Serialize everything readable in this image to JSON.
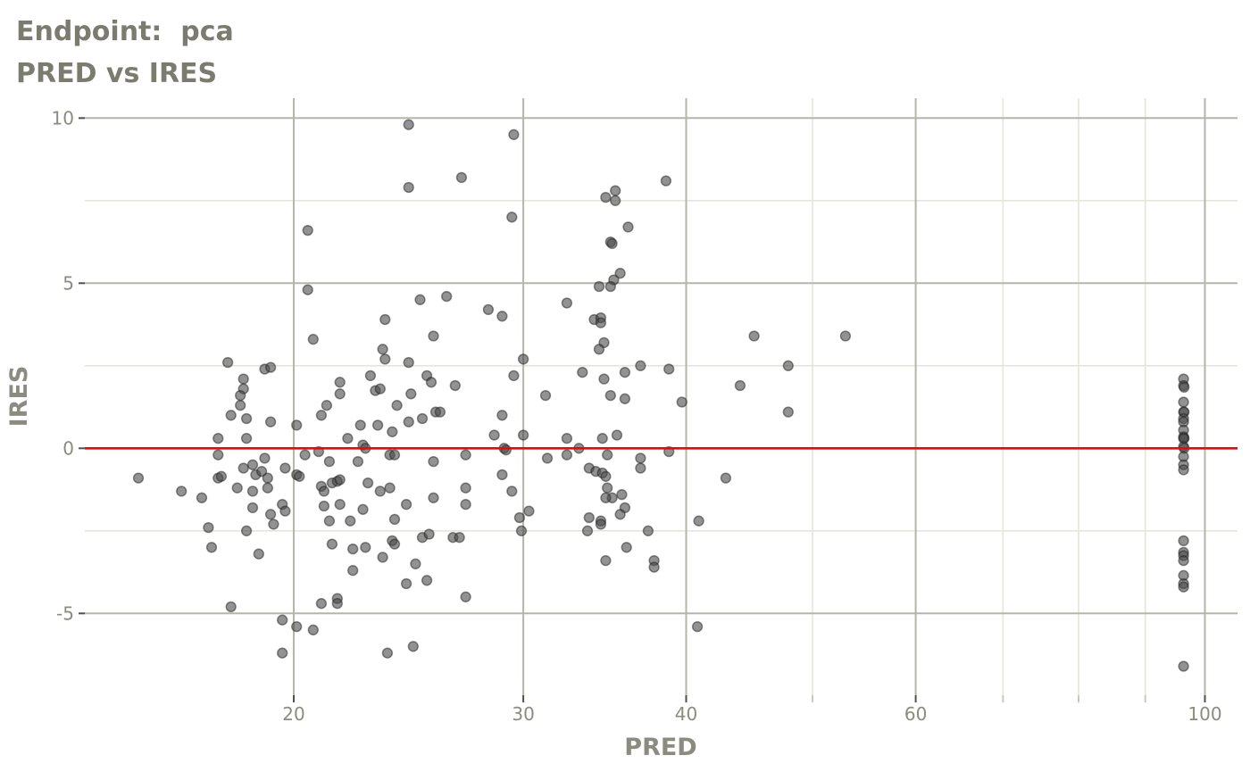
{
  "title": "Endpoint:  pca",
  "subtitle": "PRED vs IRES",
  "chart_data": {
    "type": "scatter",
    "title": "Endpoint:  pca",
    "subtitle": "PRED vs IRES",
    "xlabel": "PRED",
    "ylabel": "IRES",
    "x_scale": "log10",
    "x_axis_range": [
      13.8,
      106
    ],
    "y_axis_range": [
      -7.5,
      10.6
    ],
    "x_ticks": [
      20,
      30,
      40,
      60,
      100
    ],
    "x_minor_ticks": [
      50,
      70,
      80,
      90
    ],
    "y_ticks": [
      10,
      5,
      0,
      -5
    ],
    "y_minor_gridlines": [
      7.5,
      2.5,
      -2.5
    ],
    "grid": true,
    "legend": "none",
    "reference_line_y": 0,
    "colors": {
      "title_text": "#7b7b6f",
      "axis_text": "#8b8b7f",
      "grid_major": "#b5b5a9",
      "grid_minor": "#e5e5da",
      "tick_major": "#4f4f4f",
      "tick_minor": "#c9c9bd",
      "reference_line": "#fe0000",
      "point_fill": "#4a4a4a",
      "point_stroke": "#1f1f1f"
    },
    "points": [
      [
        24.5,
        9.8
      ],
      [
        26.9,
        8.2
      ],
      [
        24.5,
        7.9
      ],
      [
        20.5,
        6.6
      ],
      [
        20.5,
        4.8
      ],
      [
        25,
        4.5
      ],
      [
        26.2,
        4.6
      ],
      [
        23.5,
        3.9
      ],
      [
        20.7,
        3.3
      ],
      [
        23.4,
        3.0
      ],
      [
        23.5,
        2.7
      ],
      [
        24.5,
        2.6
      ],
      [
        25.6,
        3.4
      ],
      [
        17.8,
        2.6
      ],
      [
        19,
        2.4
      ],
      [
        19.2,
        2.45
      ],
      [
        18.3,
        2.1
      ],
      [
        18.3,
        1.8
      ],
      [
        21.7,
        2.0
      ],
      [
        22.9,
        2.2
      ],
      [
        25.3,
        2.2
      ],
      [
        25.5,
        2.0
      ],
      [
        26.6,
        1.9
      ],
      [
        23.1,
        1.75
      ],
      [
        23.3,
        1.8
      ],
      [
        24.6,
        1.65
      ],
      [
        21.7,
        1.65
      ],
      [
        18.2,
        1.6
      ],
      [
        18.2,
        1.3
      ],
      [
        21.2,
        1.3
      ],
      [
        24,
        1.3
      ],
      [
        25.7,
        1.1
      ],
      [
        25.9,
        1.1
      ],
      [
        17.9,
        1.0
      ],
      [
        18.4,
        0.9
      ],
      [
        19.2,
        0.8
      ],
      [
        20.1,
        0.7
      ],
      [
        21,
        1.0
      ],
      [
        22,
        0.3
      ],
      [
        22.5,
        0.7
      ],
      [
        23.2,
        0.7
      ],
      [
        23.8,
        0.5
      ],
      [
        24.5,
        0.8
      ],
      [
        25.1,
        0.9
      ],
      [
        17.5,
        0.3
      ],
      [
        18.4,
        0.3
      ],
      [
        22.6,
        0.1
      ],
      [
        22.7,
        0.0
      ],
      [
        17.5,
        -0.2
      ],
      [
        20.4,
        -0.2
      ],
      [
        20.9,
        -0.1
      ],
      [
        19,
        -0.3
      ],
      [
        21.3,
        -0.4
      ],
      [
        22.4,
        -0.4
      ],
      [
        23.7,
        -0.2
      ],
      [
        23.9,
        -0.2
      ],
      [
        25.6,
        -0.4
      ],
      [
        15.2,
        -0.9
      ],
      [
        17.5,
        -0.9
      ],
      [
        17.6,
        -0.85
      ],
      [
        18.3,
        -0.6
      ],
      [
        18.6,
        -0.5
      ],
      [
        18.7,
        -0.8
      ],
      [
        18.9,
        -0.7
      ],
      [
        19.1,
        -0.9
      ],
      [
        19.7,
        -0.6
      ],
      [
        20.1,
        -0.8
      ],
      [
        20.2,
        -0.85
      ],
      [
        27.1,
        -0.2
      ],
      [
        18.1,
        -1.2
      ],
      [
        18.6,
        -1.3
      ],
      [
        19.1,
        -1.2
      ],
      [
        16.4,
        -1.3
      ],
      [
        17,
        -1.5
      ],
      [
        18.6,
        -1.8
      ],
      [
        19.6,
        -1.7
      ],
      [
        19.7,
        -1.9
      ],
      [
        19.2,
        -2.0
      ],
      [
        19.3,
        -2.3
      ],
      [
        17.2,
        -2.4
      ],
      [
        18.4,
        -2.5
      ],
      [
        21,
        -1.15
      ],
      [
        21.1,
        -1.3
      ],
      [
        21.4,
        -1.05
      ],
      [
        21.6,
        -1.0
      ],
      [
        21.7,
        -0.95
      ],
      [
        22.8,
        -1.05
      ],
      [
        23.3,
        -1.3
      ],
      [
        23.7,
        -1.2
      ],
      [
        21.1,
        -1.75
      ],
      [
        21.7,
        -1.7
      ],
      [
        21.3,
        -2.2
      ],
      [
        22.1,
        -2.2
      ],
      [
        22.6,
        -1.85
      ],
      [
        23.9,
        -2.15
      ],
      [
        24.4,
        -1.7
      ],
      [
        25.6,
        -1.5
      ],
      [
        27.1,
        -1.2
      ],
      [
        27.1,
        -1.7
      ],
      [
        17.3,
        -3.0
      ],
      [
        18.8,
        -3.2
      ],
      [
        22.2,
        -3.05
      ],
      [
        22.7,
        -3.0
      ],
      [
        23.4,
        -3.3
      ],
      [
        21.4,
        -2.9
      ],
      [
        23.8,
        -2.8
      ],
      [
        23.9,
        -2.9
      ],
      [
        25.1,
        -2.7
      ],
      [
        25.4,
        -2.6
      ],
      [
        26.5,
        -2.7
      ],
      [
        26.8,
        -2.7
      ],
      [
        22.2,
        -3.7
      ],
      [
        24.8,
        -3.5
      ],
      [
        25.3,
        -4.0
      ],
      [
        24.4,
        -4.1
      ],
      [
        27.1,
        -4.5
      ],
      [
        21,
        -4.7
      ],
      [
        21.6,
        -4.55
      ],
      [
        21.6,
        -4.7
      ],
      [
        17.9,
        -4.8
      ],
      [
        19.6,
        -5.2
      ],
      [
        20.1,
        -5.4
      ],
      [
        20.7,
        -5.5
      ],
      [
        19.6,
        -6.2
      ],
      [
        23.6,
        -6.2
      ],
      [
        24.7,
        -6.0
      ],
      [
        29.5,
        9.5
      ],
      [
        38.6,
        8.1
      ],
      [
        35.3,
        7.8
      ],
      [
        34.7,
        7.6
      ],
      [
        35.3,
        7.5
      ],
      [
        29.4,
        7.0
      ],
      [
        36.1,
        6.7
      ],
      [
        35,
        6.25
      ],
      [
        35.1,
        6.2
      ],
      [
        35.6,
        5.3
      ],
      [
        35.2,
        5.1
      ],
      [
        34.3,
        4.9
      ],
      [
        35,
        4.9
      ],
      [
        32.4,
        4.4
      ],
      [
        28.2,
        4.2
      ],
      [
        28.9,
        4.0
      ],
      [
        34,
        3.9
      ],
      [
        34.4,
        3.95
      ],
      [
        34.4,
        3.8
      ],
      [
        34.6,
        3.2
      ],
      [
        34.3,
        3.0
      ],
      [
        30,
        2.7
      ],
      [
        45.1,
        3.4
      ],
      [
        53,
        3.4
      ],
      [
        47.9,
        2.5
      ],
      [
        29.5,
        2.2
      ],
      [
        33.3,
        2.3
      ],
      [
        34.6,
        2.1
      ],
      [
        35.9,
        2.3
      ],
      [
        36.9,
        2.5
      ],
      [
        38.8,
        2.4
      ],
      [
        44,
        1.9
      ],
      [
        31.2,
        1.6
      ],
      [
        35,
        1.6
      ],
      [
        35.9,
        1.5
      ],
      [
        39.7,
        1.4
      ],
      [
        47.9,
        1.1
      ],
      [
        28.9,
        1.0
      ],
      [
        28.5,
        0.4
      ],
      [
        30,
        0.4
      ],
      [
        29,
        0.0
      ],
      [
        29.1,
        -0.05
      ],
      [
        32.4,
        0.3
      ],
      [
        32.4,
        -0.2
      ],
      [
        33.1,
        0.0
      ],
      [
        34.5,
        0.3
      ],
      [
        35.4,
        0.4
      ],
      [
        31.3,
        -0.3
      ],
      [
        34.8,
        -0.2
      ],
      [
        36.9,
        -0.3
      ],
      [
        38.8,
        -0.1
      ],
      [
        36.9,
        -0.6
      ],
      [
        33.7,
        -0.6
      ],
      [
        34.1,
        -0.7
      ],
      [
        34.5,
        -0.75
      ],
      [
        34.7,
        -0.85
      ],
      [
        42.9,
        -0.9
      ],
      [
        28.9,
        -0.8
      ],
      [
        29.4,
        -1.3
      ],
      [
        34.8,
        -1.2
      ],
      [
        35.1,
        -1.5
      ],
      [
        34.7,
        -1.5
      ],
      [
        35.7,
        -1.4
      ],
      [
        35.9,
        -1.8
      ],
      [
        35.6,
        -2.0
      ],
      [
        30.3,
        -1.9
      ],
      [
        29.8,
        -2.1
      ],
      [
        33.7,
        -2.1
      ],
      [
        34.4,
        -2.2
      ],
      [
        34.4,
        -2.3
      ],
      [
        40.9,
        -2.2
      ],
      [
        29.9,
        -2.5
      ],
      [
        33.6,
        -2.5
      ],
      [
        37.4,
        -2.5
      ],
      [
        36,
        -3.0
      ],
      [
        34.7,
        -3.4
      ],
      [
        37.8,
        -3.4
      ],
      [
        37.8,
        -3.6
      ],
      [
        40.8,
        -5.4
      ],
      [
        96.3,
        2.1
      ],
      [
        96.3,
        1.9
      ],
      [
        96.4,
        1.85
      ],
      [
        96.3,
        1.4
      ],
      [
        96.3,
        1.1
      ],
      [
        96.4,
        1.1
      ],
      [
        96.3,
        0.9
      ],
      [
        96.3,
        0.8
      ],
      [
        96.3,
        0.55
      ],
      [
        96.3,
        0.35
      ],
      [
        96.4,
        0.3
      ],
      [
        96.3,
        0.3
      ],
      [
        96.3,
        0.05
      ],
      [
        96.4,
        0.0
      ],
      [
        96.3,
        -0.25
      ],
      [
        96.3,
        -0.5
      ],
      [
        96.3,
        -0.65
      ],
      [
        96.3,
        -2.8
      ],
      [
        96.3,
        -3.15
      ],
      [
        96.3,
        -3.25
      ],
      [
        96.3,
        -3.4
      ],
      [
        96.3,
        -3.85
      ],
      [
        96.3,
        -4.1
      ],
      [
        96.3,
        -4.2
      ],
      [
        96.3,
        -6.6
      ]
    ]
  }
}
